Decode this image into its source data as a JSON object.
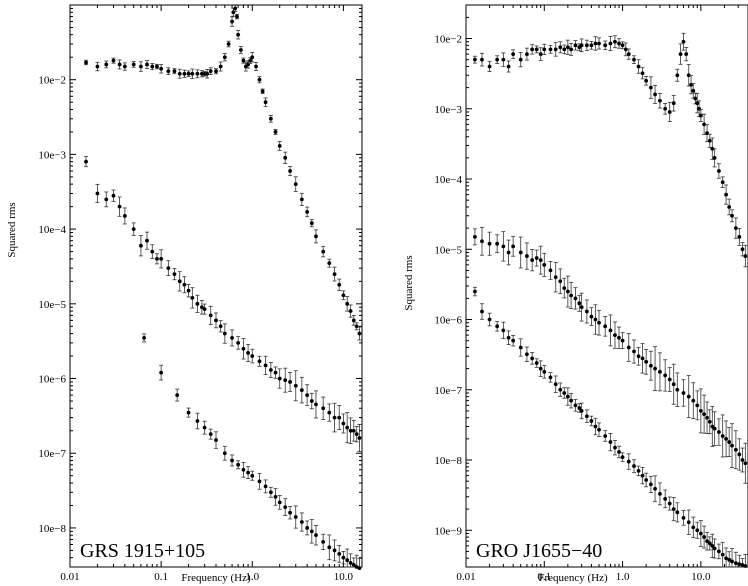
{
  "chart_data": [
    {
      "type": "scatter",
      "panel_label": "GRS 1915+105",
      "xlabel": "Frequency (Hz)",
      "ylabel": "Squared rms",
      "x_scale": "log",
      "y_scale": "log",
      "xlim": [
        0.01,
        16
      ],
      "ylim": [
        3e-09,
        0.1
      ],
      "x_ticks": [
        "0.01",
        "0.1",
        "1.0",
        "10.0"
      ],
      "y_ticks": [
        "10e−8",
        "10e−7",
        "10e−6",
        "10e−5",
        "10e−4",
        "10e−3",
        "10e−2"
      ],
      "series": [
        {
          "x": [
            0.015,
            0.02,
            0.025,
            0.03,
            0.035,
            0.04,
            0.05,
            0.06,
            0.07,
            0.08,
            0.09,
            0.1,
            0.12,
            0.14,
            0.16,
            0.18,
            0.2,
            0.22,
            0.25,
            0.28,
            0.3,
            0.32,
            0.35,
            0.4,
            0.45,
            0.5,
            0.55,
            0.6,
            0.62,
            0.65,
            0.68,
            0.7,
            0.75,
            0.8,
            0.85,
            0.9,
            0.95,
            1.0,
            1.1,
            1.2,
            1.3,
            1.4,
            1.6,
            1.8,
            2.0,
            2.3,
            2.6,
            3.0,
            3.5,
            4.0,
            4.5,
            5.0,
            6.0,
            7.0,
            8.0,
            9.0,
            10.0,
            11.0,
            12.0,
            13.0,
            14.0,
            15.0
          ],
          "y": [
            0.017,
            0.015,
            0.016,
            0.018,
            0.016,
            0.015,
            0.016,
            0.015,
            0.016,
            0.015,
            0.015,
            0.014,
            0.013,
            0.013,
            0.012,
            0.012,
            0.012,
            0.012,
            0.012,
            0.012,
            0.012,
            0.012,
            0.013,
            0.013,
            0.015,
            0.02,
            0.03,
            0.06,
            0.08,
            0.09,
            0.07,
            0.04,
            0.025,
            0.018,
            0.015,
            0.016,
            0.018,
            0.02,
            0.015,
            0.01,
            0.007,
            0.005,
            0.003,
            0.002,
            0.0013,
            0.0009,
            0.0006,
            0.0004,
            0.00025,
            0.00017,
            0.00012,
            8e-05,
            5e-05,
            3.5e-05,
            2.5e-05,
            1.8e-05,
            1.3e-05,
            1e-05,
            8e-06,
            6e-06,
            5e-06,
            4e-06
          ],
          "err": 0.12
        },
        {
          "x": [
            0.015,
            0.02,
            0.025,
            0.03,
            0.035,
            0.04,
            0.05,
            0.06,
            0.07,
            0.08,
            0.09,
            0.1,
            0.12,
            0.14,
            0.16,
            0.18,
            0.2,
            0.22,
            0.25,
            0.28,
            0.3,
            0.35,
            0.4,
            0.45,
            0.5,
            0.6,
            0.7,
            0.8,
            0.9,
            1.0,
            1.2,
            1.4,
            1.6,
            1.8,
            2.0,
            2.3,
            2.6,
            3.0,
            3.5,
            4.0,
            4.5,
            5.0,
            6.0,
            7.0,
            8.0,
            9.0,
            10.0,
            11.0,
            12.0,
            13.0,
            14.0,
            15.0
          ],
          "y": [
            0.0008,
            0.0003,
            0.00025,
            0.00028,
            0.0002,
            0.00015,
            0.0001,
            6e-05,
            7e-05,
            5e-05,
            4e-05,
            4e-05,
            3e-05,
            2.5e-05,
            2e-05,
            1.8e-05,
            1.5e-05,
            1.2e-05,
            1e-05,
            9e-06,
            8.5e-06,
            7e-06,
            6e-06,
            5e-06,
            4e-06,
            3.5e-06,
            3e-06,
            2.5e-06,
            2.2e-06,
            2e-06,
            1.7e-06,
            1.5e-06,
            1.3e-06,
            1.2e-06,
            1e-06,
            9.5e-07,
            9e-07,
            8e-07,
            7e-07,
            6e-07,
            5e-07,
            4.5e-07,
            4e-07,
            3.5e-07,
            3e-07,
            3e-07,
            2.5e-07,
            2.2e-07,
            2e-07,
            2e-07,
            1.8e-07,
            1.6e-07
          ],
          "err": 0.28
        },
        {
          "x": [
            0.065,
            0.1,
            0.15,
            0.2,
            0.25,
            0.3,
            0.35,
            0.4,
            0.5,
            0.6,
            0.7,
            0.8,
            0.9,
            1.0,
            1.2,
            1.4,
            1.6,
            1.8,
            2.0,
            2.3,
            2.6,
            3.0,
            3.5,
            4.0,
            4.5,
            5.0,
            6.0,
            7.0,
            8.0,
            9.0,
            10.0,
            11.0,
            12.0,
            13.0,
            14.0,
            15.0
          ],
          "y": [
            3.5e-06,
            1.2e-06,
            6e-07,
            3.5e-07,
            2.7e-07,
            2.2e-07,
            1.8e-07,
            1.5e-07,
            1e-07,
            8e-08,
            7e-08,
            6e-08,
            5.5e-08,
            5e-08,
            4.2e-08,
            3.6e-08,
            3e-08,
            2.6e-08,
            2.2e-08,
            1.9e-08,
            1.6e-08,
            1.4e-08,
            1.2e-08,
            1e-08,
            9e-09,
            8e-09,
            6.5e-09,
            5.5e-09,
            5e-09,
            4.5e-09,
            4e-09,
            3.7e-09,
            3.4e-09,
            3.2e-09,
            3e-09,
            2.9e-09
          ],
          "err": 0.22
        }
      ]
    },
    {
      "type": "scatter",
      "panel_label": "GRO J1655−40",
      "xlabel": "Frequency (Hz)",
      "ylabel": "Squared rms",
      "x_scale": "log",
      "y_scale": "log",
      "xlim": [
        0.01,
        40
      ],
      "ylim": [
        3e-10,
        0.03
      ],
      "x_ticks": [
        "0.01",
        "0.1",
        "1.0",
        "10.0"
      ],
      "y_ticks": [
        "10e−9",
        "10e−8",
        "10e−7",
        "10e−6",
        "10e−5",
        "10e−4",
        "10e−3",
        "10e−2"
      ],
      "series": [
        {
          "x": [
            0.013,
            0.016,
            0.02,
            0.025,
            0.03,
            0.035,
            0.04,
            0.05,
            0.06,
            0.07,
            0.08,
            0.09,
            0.1,
            0.12,
            0.14,
            0.16,
            0.18,
            0.2,
            0.22,
            0.25,
            0.28,
            0.3,
            0.35,
            0.4,
            0.45,
            0.5,
            0.6,
            0.7,
            0.8,
            0.9,
            1.0,
            1.1,
            1.2,
            1.4,
            1.6,
            1.8,
            2.0,
            2.3,
            2.6,
            3.0,
            3.5,
            4.0,
            4.5,
            5.0,
            5.5,
            6.0,
            6.5,
            7.0,
            7.5,
            8.0,
            8.5,
            9.0,
            9.5,
            10.0,
            11.0,
            12.0,
            13.0,
            14.0,
            15.0,
            17.0,
            19.0,
            21.0,
            23.0,
            25.0,
            28.0,
            31.0,
            34.0,
            37.0
          ],
          "y": [
            0.005,
            0.005,
            0.004,
            0.005,
            0.005,
            0.004,
            0.006,
            0.005,
            0.006,
            0.007,
            0.007,
            0.006,
            0.007,
            0.007,
            0.007,
            0.0075,
            0.007,
            0.0075,
            0.007,
            0.008,
            0.0075,
            0.008,
            0.008,
            0.008,
            0.0085,
            0.0085,
            0.008,
            0.0085,
            0.009,
            0.0085,
            0.008,
            0.007,
            0.006,
            0.005,
            0.004,
            0.0032,
            0.0025,
            0.002,
            0.0016,
            0.0013,
            0.001,
            0.0009,
            0.0012,
            0.003,
            0.006,
            0.009,
            0.006,
            0.003,
            0.0022,
            0.0018,
            0.0014,
            0.0012,
            0.001,
            0.0008,
            0.0006,
            0.00045,
            0.00035,
            0.00027,
            0.0002,
            0.00013,
            9e-05,
            6e-05,
            4e-05,
            3e-05,
            2e-05,
            1.5e-05,
            1e-05,
            8e-06
          ],
          "err": 0.2
        },
        {
          "x": [
            0.013,
            0.016,
            0.02,
            0.025,
            0.03,
            0.035,
            0.04,
            0.05,
            0.06,
            0.07,
            0.08,
            0.09,
            0.1,
            0.12,
            0.14,
            0.16,
            0.18,
            0.2,
            0.22,
            0.25,
            0.28,
            0.3,
            0.35,
            0.4,
            0.45,
            0.5,
            0.6,
            0.7,
            0.8,
            0.9,
            1.0,
            1.2,
            1.4,
            1.6,
            1.8,
            2.0,
            2.3,
            2.6,
            3.0,
            3.5,
            4.0,
            4.5,
            5.0,
            6.0,
            7.0,
            8.0,
            9.0,
            10.0,
            11.0,
            12.0,
            13.0,
            14.0,
            15.0,
            17.0,
            19.0,
            21.0,
            23.0,
            25.0,
            28.0,
            31.0,
            34.0,
            37.0
          ],
          "y": [
            1.5e-05,
            1.3e-05,
            1.2e-05,
            1.2e-05,
            1.1e-05,
            9e-06,
            1.1e-05,
            9e-06,
            8e-06,
            7e-06,
            7.5e-06,
            7e-06,
            6e-06,
            5e-06,
            4e-06,
            3.5e-06,
            2.8e-06,
            2.5e-06,
            2.2e-06,
            2e-06,
            1.7e-06,
            1.5e-06,
            1.3e-06,
            1.1e-06,
            1e-06,
            9e-07,
            8e-07,
            7e-07,
            6e-07,
            5.5e-07,
            5e-07,
            4e-07,
            3.5e-07,
            3e-07,
            2.8e-07,
            2.5e-07,
            2.2e-07,
            2e-07,
            1.8e-07,
            1.6e-07,
            1.4e-07,
            1.2e-07,
            1e-07,
            9e-08,
            8e-08,
            7e-08,
            6e-08,
            5e-08,
            4.5e-08,
            4e-08,
            3.5e-08,
            3e-08,
            2.8e-08,
            2.5e-08,
            2.2e-08,
            2e-08,
            1.8e-08,
            1.6e-08,
            1.4e-08,
            1.2e-08,
            1e-08,
            9e-09
          ],
          "err": 0.5
        },
        {
          "x": [
            0.013,
            0.016,
            0.02,
            0.025,
            0.03,
            0.035,
            0.04,
            0.05,
            0.06,
            0.07,
            0.08,
            0.09,
            0.1,
            0.12,
            0.14,
            0.16,
            0.18,
            0.2,
            0.22,
            0.25,
            0.28,
            0.3,
            0.35,
            0.4,
            0.45,
            0.5,
            0.6,
            0.7,
            0.8,
            0.9,
            1.0,
            1.2,
            1.4,
            1.6,
            1.8,
            2.0,
            2.3,
            2.6,
            3.0,
            3.5,
            4.0,
            4.5,
            5.0,
            6.0,
            7.0,
            8.0,
            9.0,
            10.0,
            11.0,
            12.0,
            13.0,
            14.0,
            15.0,
            17.0,
            19.0,
            21.0,
            23.0,
            25.0,
            28.0,
            31.0,
            34.0,
            37.0
          ],
          "y": [
            2.5e-06,
            1.3e-06,
            1e-06,
            8e-07,
            7e-07,
            5.5e-07,
            5e-07,
            4e-07,
            3.2e-07,
            2.8e-07,
            2.4e-07,
            2e-07,
            1.8e-07,
            1.5e-07,
            1.2e-07,
            1e-07,
            9e-08,
            8e-08,
            7e-08,
            6e-08,
            5.5e-08,
            5e-08,
            4.2e-08,
            3.6e-08,
            3e-08,
            2.7e-08,
            2.2e-08,
            1.8e-08,
            1.5e-08,
            1.3e-08,
            1.1e-08,
            9.5e-09,
            8.2e-09,
            7e-09,
            6e-09,
            5.2e-09,
            4.5e-09,
            3.9e-09,
            3.3e-09,
            2.8e-09,
            2.4e-09,
            2e-09,
            1.8e-09,
            1.5e-09,
            1.3e-09,
            1.1e-09,
            1e-09,
            9e-10,
            8e-10,
            7e-10,
            6.5e-10,
            6e-10,
            5.5e-10,
            5e-10,
            4.5e-10,
            4e-10,
            3.8e-10,
            3.6e-10,
            3.4e-10,
            3.3e-10,
            3.2e-10,
            3.1e-10
          ],
          "err": 0.25
        }
      ]
    }
  ]
}
